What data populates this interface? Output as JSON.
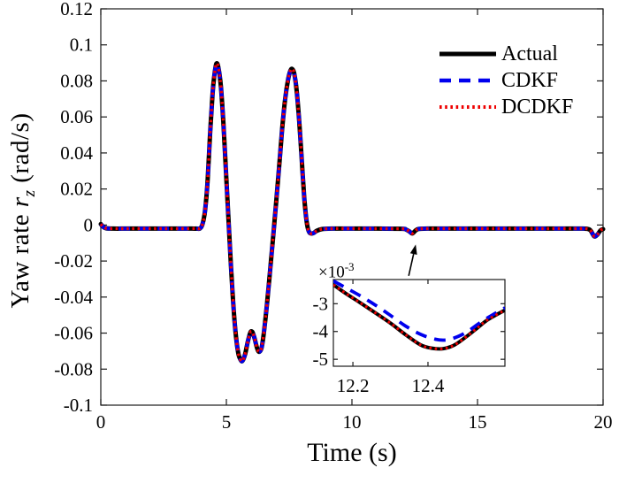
{
  "chart_data": {
    "type": "line",
    "title": "",
    "xlabel": "Time (s)",
    "ylabel": "Yaw rate r_z (rad/s)",
    "ylabel_parts": {
      "prefix": "Yaw rate ",
      "symbol": "r",
      "subscript": "z",
      "suffix": " (rad/s)"
    },
    "xlim": [
      0,
      20
    ],
    "ylim": [
      -0.1,
      0.12
    ],
    "grid": false,
    "xticks": [
      {
        "v": 0,
        "label": "0"
      },
      {
        "v": 5,
        "label": "5"
      },
      {
        "v": 10,
        "label": "10"
      },
      {
        "v": 15,
        "label": "15"
      },
      {
        "v": 20,
        "label": "20"
      }
    ],
    "yticks": [
      {
        "v": 0.12,
        "label": "0.12"
      },
      {
        "v": 0.1,
        "label": "0.1"
      },
      {
        "v": 0.08,
        "label": "0.08"
      },
      {
        "v": 0.06,
        "label": "0.06"
      },
      {
        "v": 0.04,
        "label": "0.04"
      },
      {
        "v": 0.02,
        "label": "0.02"
      },
      {
        "v": 0,
        "label": "0"
      },
      {
        "v": -0.02,
        "label": "-0.02"
      },
      {
        "v": -0.04,
        "label": "-0.04"
      },
      {
        "v": -0.06,
        "label": "-0.06"
      },
      {
        "v": -0.08,
        "label": "-0.08"
      },
      {
        "v": -0.1,
        "label": "-0.1"
      }
    ],
    "legend": {
      "position": "upper right",
      "border": false,
      "entries": [
        {
          "label": "Actual",
          "color": "#000000",
          "line": "solid"
        },
        {
          "label": "CDKF",
          "color": "#0000ee",
          "line": "dashed"
        },
        {
          "label": "DCDKF",
          "color": "#ee0000",
          "line": "dotted"
        }
      ]
    },
    "series": [
      {
        "name": "Actual",
        "color": "#000000",
        "style": "solid",
        "points": [
          [
            0,
            0.0005
          ],
          [
            0.08,
            -0.0008
          ],
          [
            0.2,
            -0.0018
          ],
          [
            0.5,
            -0.002
          ],
          [
            1,
            -0.002
          ],
          [
            1.5,
            -0.002
          ],
          [
            2,
            -0.002
          ],
          [
            2.5,
            -0.002
          ],
          [
            3,
            -0.002
          ],
          [
            3.5,
            -0.002
          ],
          [
            3.8,
            -0.002
          ],
          [
            3.95,
            -0.0019
          ],
          [
            4.05,
            0.0005
          ],
          [
            4.15,
            0.008
          ],
          [
            4.25,
            0.024
          ],
          [
            4.35,
            0.05
          ],
          [
            4.45,
            0.073
          ],
          [
            4.52,
            0.083
          ],
          [
            4.6,
            0.0895
          ],
          [
            4.68,
            0.0875
          ],
          [
            4.78,
            0.077
          ],
          [
            4.88,
            0.057
          ],
          [
            4.98,
            0.031
          ],
          [
            5.08,
            0.004
          ],
          [
            5.18,
            -0.022
          ],
          [
            5.28,
            -0.045
          ],
          [
            5.38,
            -0.0615
          ],
          [
            5.48,
            -0.0715
          ],
          [
            5.58,
            -0.0752
          ],
          [
            5.65,
            -0.0752
          ],
          [
            5.75,
            -0.0715
          ],
          [
            5.85,
            -0.065
          ],
          [
            5.95,
            -0.0598
          ],
          [
            6.03,
            -0.0593
          ],
          [
            6.12,
            -0.0628
          ],
          [
            6.22,
            -0.0682
          ],
          [
            6.3,
            -0.0704
          ],
          [
            6.4,
            -0.0682
          ],
          [
            6.5,
            -0.059
          ],
          [
            6.62,
            -0.0435
          ],
          [
            6.74,
            -0.0255
          ],
          [
            6.86,
            -0.007
          ],
          [
            6.98,
            0.012
          ],
          [
            7.1,
            0.032
          ],
          [
            7.22,
            0.053
          ],
          [
            7.34,
            0.07
          ],
          [
            7.46,
            0.081
          ],
          [
            7.55,
            0.0857
          ],
          [
            7.62,
            0.0866
          ],
          [
            7.7,
            0.0842
          ],
          [
            7.8,
            0.0745
          ],
          [
            7.9,
            0.0575
          ],
          [
            8.0,
            0.0365
          ],
          [
            8.1,
            0.0155
          ],
          [
            8.2,
            0.0015
          ],
          [
            8.3,
            -0.004
          ],
          [
            8.45,
            -0.0046
          ],
          [
            8.6,
            -0.0032
          ],
          [
            8.8,
            -0.0023
          ],
          [
            9.2,
            -0.002
          ],
          [
            10,
            -0.002
          ],
          [
            11,
            -0.002
          ],
          [
            12,
            -0.0021
          ],
          [
            12.15,
            -0.0025
          ],
          [
            12.28,
            -0.0035
          ],
          [
            12.4,
            -0.0047
          ],
          [
            12.52,
            -0.0032
          ],
          [
            12.65,
            -0.0022
          ],
          [
            13,
            -0.002
          ],
          [
            14,
            -0.002
          ],
          [
            15,
            -0.002
          ],
          [
            16,
            -0.002
          ],
          [
            17,
            -0.002
          ],
          [
            18,
            -0.002
          ],
          [
            19,
            -0.002
          ],
          [
            19.35,
            -0.0021
          ],
          [
            19.5,
            -0.003
          ],
          [
            19.65,
            -0.0063
          ],
          [
            19.78,
            -0.0052
          ],
          [
            19.9,
            -0.0029
          ],
          [
            20,
            -0.0023
          ]
        ]
      },
      {
        "name": "CDKF",
        "color": "#0000ee",
        "style": "dashed",
        "same_as": "Actual",
        "note": "visually coincident with Actual at main-plot scale",
        "points": []
      },
      {
        "name": "DCDKF",
        "color": "#ee0000",
        "style": "dotted",
        "same_as": "Actual",
        "note": "visually coincident with Actual at main-plot scale",
        "points": []
      }
    ],
    "inset": {
      "xlim": [
        12.148,
        12.605
      ],
      "ylim": [
        -0.00525,
        -0.00213
      ],
      "multiplier": {
        "base": "×10",
        "exponent": "-3"
      },
      "xticks": [
        {
          "v": 12.2,
          "label": "12.2"
        },
        {
          "v": 12.4,
          "label": "12.4"
        }
      ],
      "yticks": [
        {
          "v": -0.003,
          "label": "-3"
        },
        {
          "v": -0.004,
          "label": "-4"
        },
        {
          "v": -0.005,
          "label": "-5"
        }
      ],
      "series": [
        {
          "name": "Actual",
          "color": "#000000",
          "style": "solid",
          "points": [
            [
              12.148,
              -0.00232
            ],
            [
              12.18,
              -0.00262
            ],
            [
              12.22,
              -0.00297
            ],
            [
              12.26,
              -0.00333
            ],
            [
              12.3,
              -0.0037
            ],
            [
              12.34,
              -0.00411
            ],
            [
              12.38,
              -0.00448
            ],
            [
              12.41,
              -0.0046
            ],
            [
              12.44,
              -0.00462
            ],
            [
              12.47,
              -0.00449
            ],
            [
              12.5,
              -0.00421
            ],
            [
              12.53,
              -0.00389
            ],
            [
              12.56,
              -0.00357
            ],
            [
              12.605,
              -0.00323
            ]
          ]
        },
        {
          "name": "CDKF",
          "color": "#0000ee",
          "style": "dashed",
          "points": [
            [
              12.148,
              -0.00218
            ],
            [
              12.18,
              -0.00242
            ],
            [
              12.22,
              -0.00272
            ],
            [
              12.26,
              -0.00305
            ],
            [
              12.3,
              -0.00342
            ],
            [
              12.34,
              -0.0038
            ],
            [
              12.38,
              -0.0041
            ],
            [
              12.42,
              -0.00428
            ],
            [
              12.45,
              -0.0043
            ],
            [
              12.48,
              -0.00418
            ],
            [
              12.51,
              -0.00396
            ],
            [
              12.54,
              -0.00367
            ],
            [
              12.57,
              -0.00342
            ],
            [
              12.605,
              -0.00315
            ]
          ]
        },
        {
          "name": "DCDKF",
          "color": "#ee0000",
          "style": "dotted",
          "same_as": "Actual",
          "points": [
            [
              12.148,
              -0.00232
            ],
            [
              12.18,
              -0.00262
            ],
            [
              12.22,
              -0.00297
            ],
            [
              12.26,
              -0.00333
            ],
            [
              12.3,
              -0.0037
            ],
            [
              12.34,
              -0.00411
            ],
            [
              12.38,
              -0.00448
            ],
            [
              12.41,
              -0.0046
            ],
            [
              12.44,
              -0.00462
            ],
            [
              12.47,
              -0.00449
            ],
            [
              12.5,
              -0.00421
            ],
            [
              12.53,
              -0.00389
            ],
            [
              12.56,
              -0.00357
            ],
            [
              12.605,
              -0.00323
            ]
          ]
        }
      ]
    },
    "arrow_annotation": {
      "from_xy": [
        12.26,
        -0.0282
      ],
      "to_xy": [
        12.54,
        -0.0108
      ],
      "points_at": "small dip at t = 12.4 s shown enlarged in inset"
    }
  }
}
